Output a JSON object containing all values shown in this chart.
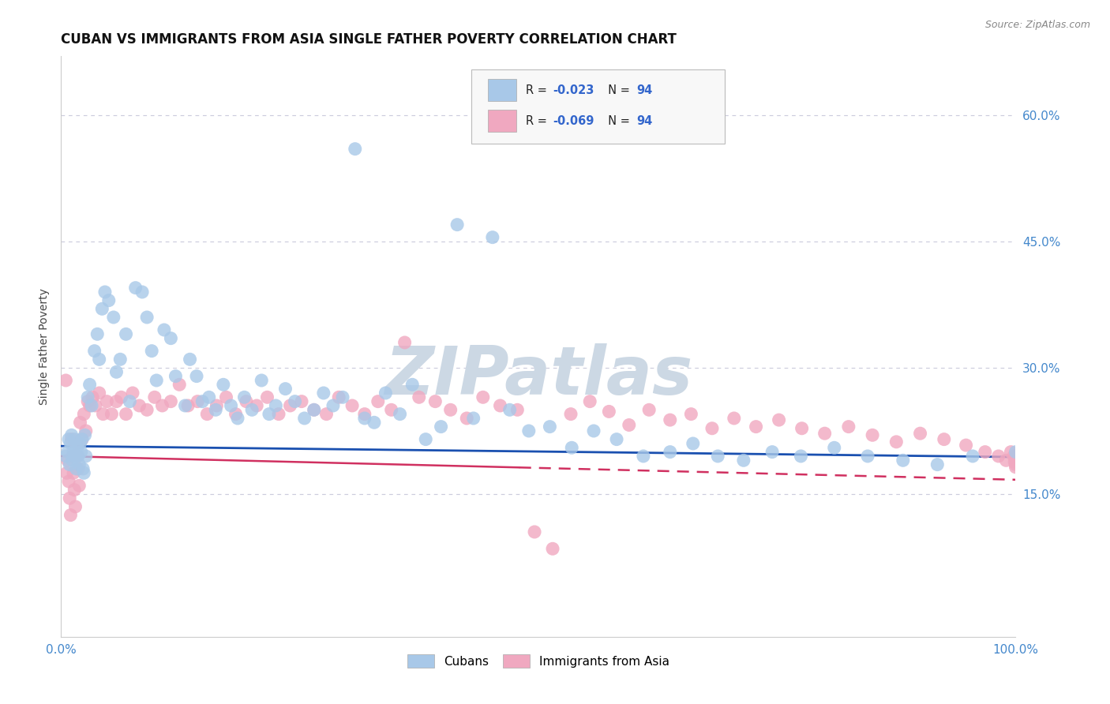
{
  "title": "CUBAN VS IMMIGRANTS FROM ASIA SINGLE FATHER POVERTY CORRELATION CHART",
  "source": "Source: ZipAtlas.com",
  "ylabel": "Single Father Poverty",
  "ytick_labels": [
    "15.0%",
    "30.0%",
    "45.0%",
    "60.0%"
  ],
  "ytick_values": [
    0.15,
    0.3,
    0.45,
    0.6
  ],
  "xlim": [
    0.0,
    1.0
  ],
  "ylim": [
    -0.02,
    0.67
  ],
  "blue_scatter_color": "#a8c8e8",
  "pink_scatter_color": "#f0a8c0",
  "blue_line_color": "#1a50b0",
  "pink_line_color": "#d03060",
  "watermark": "ZIPatlas",
  "watermark_color": "#ccd8e4",
  "background_color": "#ffffff",
  "grid_color": "#ccccdd",
  "legend_r1": "R = ",
  "legend_r1_val": "-0.023",
  "legend_n1": "N = ",
  "legend_n1_val": "94",
  "legend_r2": "R = ",
  "legend_r2_val": "-0.069",
  "legend_n2": "N = ",
  "legend_n2_val": "94",
  "legend_label_blue": "Cubans",
  "legend_label_pink": "Immigrants from Asia",
  "r_n_color": "#3366cc",
  "title_color": "#111111",
  "source_color": "#888888",
  "label_color": "#4488cc",
  "axis_color": "#cccccc",
  "blue_intercept": 0.207,
  "blue_slope": -0.013,
  "pink_intercept": 0.195,
  "pink_slope": -0.028,
  "cubans_x": [
    0.005,
    0.007,
    0.008,
    0.009,
    0.01,
    0.011,
    0.012,
    0.013,
    0.014,
    0.015,
    0.016,
    0.017,
    0.018,
    0.019,
    0.02,
    0.021,
    0.022,
    0.023,
    0.024,
    0.025,
    0.026,
    0.028,
    0.03,
    0.032,
    0.035,
    0.038,
    0.04,
    0.043,
    0.046,
    0.05,
    0.055,
    0.058,
    0.062,
    0.068,
    0.072,
    0.078,
    0.085,
    0.09,
    0.095,
    0.1,
    0.108,
    0.115,
    0.12,
    0.13,
    0.135,
    0.142,
    0.148,
    0.155,
    0.162,
    0.17,
    0.178,
    0.185,
    0.192,
    0.2,
    0.21,
    0.218,
    0.225,
    0.235,
    0.245,
    0.255,
    0.265,
    0.275,
    0.285,
    0.295,
    0.308,
    0.318,
    0.328,
    0.34,
    0.355,
    0.368,
    0.382,
    0.398,
    0.415,
    0.432,
    0.452,
    0.47,
    0.49,
    0.512,
    0.535,
    0.558,
    0.582,
    0.61,
    0.638,
    0.662,
    0.688,
    0.715,
    0.745,
    0.775,
    0.81,
    0.845,
    0.882,
    0.918,
    0.955,
    1.0
  ],
  "cubans_y": [
    0.195,
    0.2,
    0.215,
    0.185,
    0.21,
    0.22,
    0.19,
    0.2,
    0.215,
    0.195,
    0.18,
    0.205,
    0.195,
    0.185,
    0.21,
    0.2,
    0.215,
    0.18,
    0.175,
    0.22,
    0.195,
    0.265,
    0.28,
    0.255,
    0.32,
    0.34,
    0.31,
    0.37,
    0.39,
    0.38,
    0.36,
    0.295,
    0.31,
    0.34,
    0.26,
    0.395,
    0.39,
    0.36,
    0.32,
    0.285,
    0.345,
    0.335,
    0.29,
    0.255,
    0.31,
    0.29,
    0.26,
    0.265,
    0.25,
    0.28,
    0.255,
    0.24,
    0.265,
    0.25,
    0.285,
    0.245,
    0.255,
    0.275,
    0.26,
    0.24,
    0.25,
    0.27,
    0.255,
    0.265,
    0.56,
    0.24,
    0.235,
    0.27,
    0.245,
    0.28,
    0.215,
    0.23,
    0.47,
    0.24,
    0.455,
    0.25,
    0.225,
    0.23,
    0.205,
    0.225,
    0.215,
    0.195,
    0.2,
    0.21,
    0.195,
    0.19,
    0.2,
    0.195,
    0.205,
    0.195,
    0.19,
    0.185,
    0.195,
    0.2
  ],
  "asia_x": [
    0.005,
    0.006,
    0.007,
    0.008,
    0.009,
    0.01,
    0.011,
    0.012,
    0.013,
    0.014,
    0.015,
    0.016,
    0.017,
    0.018,
    0.019,
    0.02,
    0.022,
    0.024,
    0.026,
    0.028,
    0.03,
    0.033,
    0.036,
    0.04,
    0.044,
    0.048,
    0.053,
    0.058,
    0.063,
    0.068,
    0.075,
    0.082,
    0.09,
    0.098,
    0.106,
    0.115,
    0.124,
    0.133,
    0.143,
    0.153,
    0.163,
    0.173,
    0.183,
    0.194,
    0.205,
    0.216,
    0.228,
    0.24,
    0.252,
    0.265,
    0.278,
    0.291,
    0.305,
    0.318,
    0.332,
    0.346,
    0.36,
    0.375,
    0.392,
    0.408,
    0.425,
    0.442,
    0.46,
    0.478,
    0.496,
    0.515,
    0.534,
    0.554,
    0.574,
    0.595,
    0.616,
    0.638,
    0.66,
    0.682,
    0.705,
    0.728,
    0.752,
    0.776,
    0.8,
    0.825,
    0.85,
    0.875,
    0.9,
    0.925,
    0.948,
    0.968,
    0.982,
    0.99,
    0.995,
    0.998,
    0.999,
    1.0,
    1.0,
    1.0
  ],
  "asia_y": [
    0.285,
    0.175,
    0.19,
    0.165,
    0.145,
    0.125,
    0.215,
    0.195,
    0.175,
    0.155,
    0.135,
    0.21,
    0.195,
    0.18,
    0.16,
    0.235,
    0.215,
    0.245,
    0.225,
    0.26,
    0.255,
    0.265,
    0.255,
    0.27,
    0.245,
    0.26,
    0.245,
    0.26,
    0.265,
    0.245,
    0.27,
    0.255,
    0.25,
    0.265,
    0.255,
    0.26,
    0.28,
    0.255,
    0.26,
    0.245,
    0.255,
    0.265,
    0.245,
    0.26,
    0.255,
    0.265,
    0.245,
    0.255,
    0.26,
    0.25,
    0.245,
    0.265,
    0.255,
    0.245,
    0.26,
    0.25,
    0.33,
    0.265,
    0.26,
    0.25,
    0.24,
    0.265,
    0.255,
    0.25,
    0.105,
    0.085,
    0.245,
    0.26,
    0.248,
    0.232,
    0.25,
    0.238,
    0.245,
    0.228,
    0.24,
    0.23,
    0.238,
    0.228,
    0.222,
    0.23,
    0.22,
    0.212,
    0.222,
    0.215,
    0.208,
    0.2,
    0.195,
    0.19,
    0.2,
    0.195,
    0.188,
    0.182,
    0.195,
    0.185
  ]
}
